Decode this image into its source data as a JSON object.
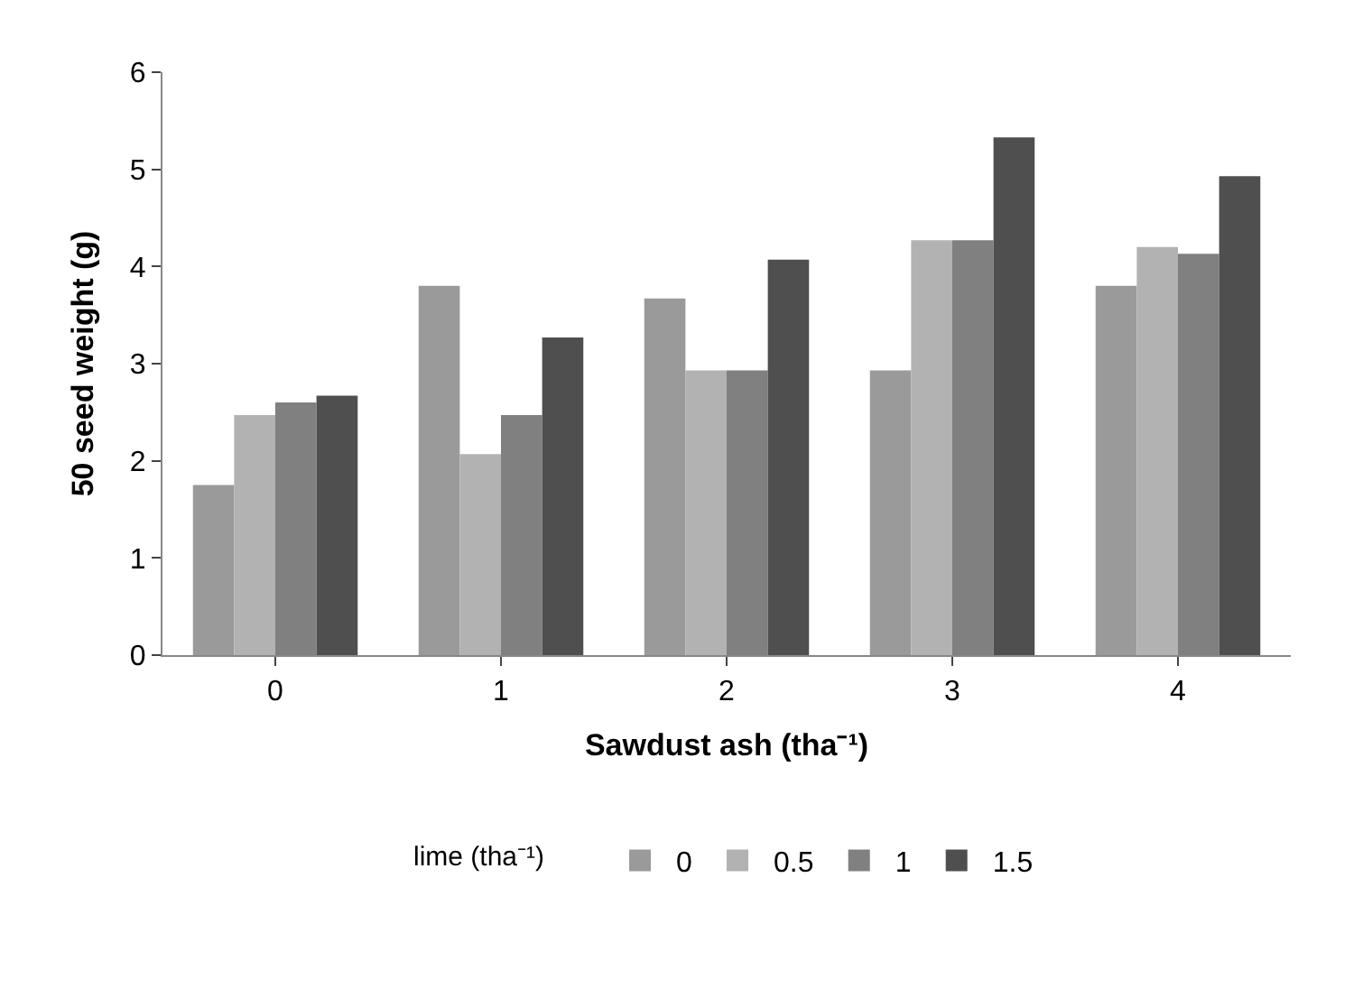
{
  "chart_data": {
    "type": "bar",
    "xlabel": "Sawdust ash (tha⁻¹)",
    "ylabel": "50 seed weight (g)",
    "legend_title": "lime (tha⁻¹)",
    "categories": [
      "0",
      "1",
      "2",
      "3",
      "4"
    ],
    "series": [
      {
        "name": "0",
        "color": "#9a9a9a",
        "values": [
          1.75,
          3.8,
          3.67,
          2.93,
          3.8
        ]
      },
      {
        "name": "0.5",
        "color": "#b2b2b2",
        "values": [
          2.47,
          2.07,
          2.93,
          4.27,
          4.2
        ]
      },
      {
        "name": "1",
        "color": "#808080",
        "values": [
          2.6,
          2.47,
          2.93,
          4.27,
          4.13
        ]
      },
      {
        "name": "1.5",
        "color": "#4f4f4f",
        "values": [
          2.67,
          3.27,
          4.07,
          5.33,
          4.93
        ]
      }
    ],
    "ylim": [
      0,
      6
    ],
    "yticks": [
      0,
      1,
      2,
      3,
      4,
      5,
      6
    ],
    "legend": "bottom"
  }
}
